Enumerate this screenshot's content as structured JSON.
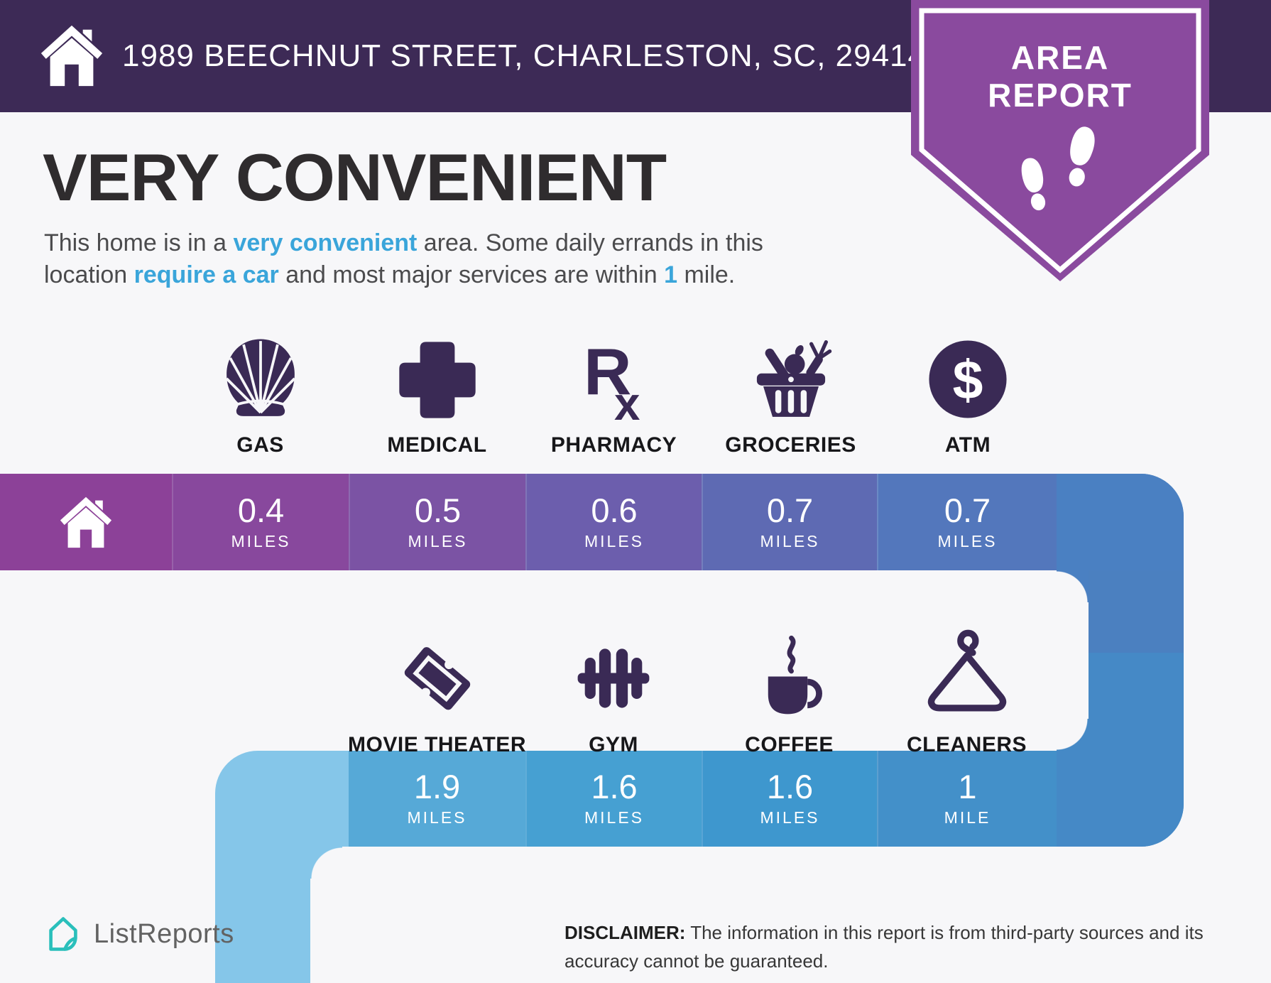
{
  "report": {
    "header": {
      "address": "1989 BEECHNUT STREET, CHARLESTON, SC, 29414"
    },
    "badge": {
      "line1": "AREA",
      "line2": "REPORT"
    },
    "headline": {
      "title": "VERY CONVENIENT",
      "description": [
        {
          "text": "This home is in a ",
          "highlight": false
        },
        {
          "text": "very convenient",
          "highlight": true
        },
        {
          "text": " area. Some daily errands in this location ",
          "highlight": false
        },
        {
          "text": "require a car",
          "highlight": true
        },
        {
          "text": " and most major services are within ",
          "highlight": false
        },
        {
          "text": "1",
          "highlight": true
        },
        {
          "text": " mile.",
          "highlight": false
        }
      ]
    },
    "rows": [
      {
        "items": [
          {
            "label": "GAS",
            "icon": "shell-gas-icon",
            "distance": "0.4",
            "unit": "MILES"
          },
          {
            "label": "MEDICAL",
            "icon": "medical-cross-icon",
            "distance": "0.5",
            "unit": "MILES"
          },
          {
            "label": "PHARMACY",
            "icon": "rx-icon",
            "distance": "0.6",
            "unit": "MILES"
          },
          {
            "label": "GROCERIES",
            "icon": "grocery-basket-icon",
            "distance": "0.7",
            "unit": "MILES"
          },
          {
            "label": "ATM",
            "icon": "dollar-circle-icon",
            "distance": "0.7",
            "unit": "MILES"
          }
        ]
      },
      {
        "items": [
          {
            "label": "MOVIE THEATER",
            "icon": "ticket-icon",
            "distance": "1.9",
            "unit": "MILES"
          },
          {
            "label": "GYM",
            "icon": "dumbbell-icon",
            "distance": "1.6",
            "unit": "MILES"
          },
          {
            "label": "COFFEE",
            "icon": "coffee-cup-icon",
            "distance": "1.6",
            "unit": "MILES"
          },
          {
            "label": "CLEANERS",
            "icon": "hanger-icon",
            "distance": "1",
            "unit": "MILE"
          }
        ]
      }
    ],
    "footer": {
      "brand": "ListReports",
      "disclaimer_label": "DISCLAIMER:",
      "disclaimer_text": " The information in this report is from third-party sources and its accuracy cannot be guaranteed."
    },
    "colors": {
      "header_bg": "#3d2a56",
      "badge_purple": "#8a4a9e",
      "accent_blue": "#3aa5da",
      "icon_purple": "#3a2a55",
      "logo_teal": "#2abfbb",
      "bar1_segments": [
        "#8c4198",
        "#88489d",
        "#7b53a4",
        "#6c5ead",
        "#5e6ab3",
        "#5377bc",
        "#4a80c2"
      ],
      "bar2_segments": [
        "#85c6e9",
        "#56a9d7",
        "#46a0d2",
        "#3e97ce",
        "#4390c9",
        "#4589c6"
      ]
    }
  }
}
